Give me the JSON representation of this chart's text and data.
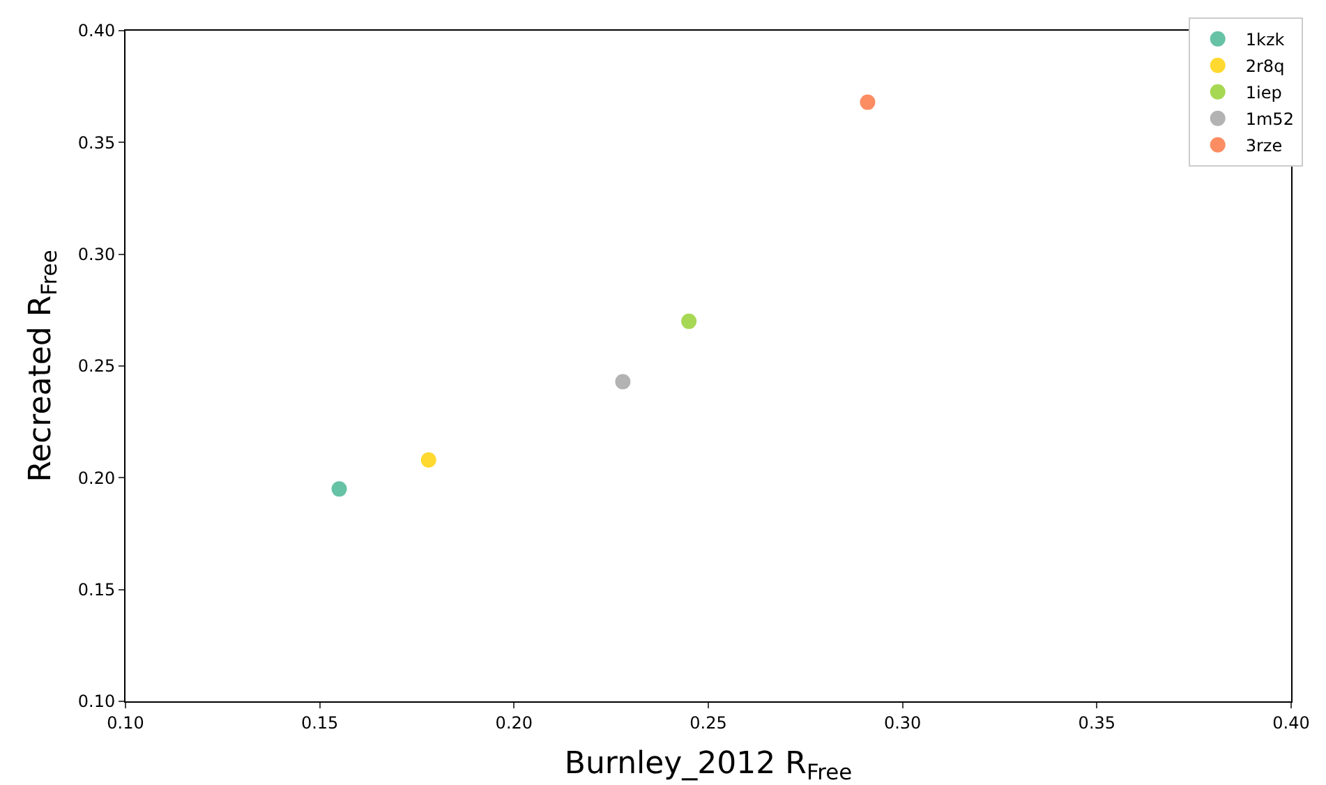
{
  "chart_data": {
    "type": "scatter",
    "xlabel": "Burnley_2012 R$_{Free}$",
    "ylabel": "Recreated R$_{Free}$",
    "xlim": [
      0.1,
      0.4
    ],
    "xticks": [
      {
        "value": 0.1,
        "label": "0.10"
      },
      {
        "value": 0.15,
        "label": "0.15"
      },
      {
        "value": 0.2,
        "label": "0.20"
      },
      {
        "value": 0.25,
        "label": "0.25"
      },
      {
        "value": 0.3,
        "label": "0.30"
      },
      {
        "value": 0.35,
        "label": "0.35"
      },
      {
        "value": 0.4,
        "label": "0.40"
      }
    ],
    "ylim": [
      0.1,
      0.4
    ],
    "yticks": [
      {
        "value": 0.1,
        "label": "0.10"
      },
      {
        "value": 0.15,
        "label": "0.15"
      },
      {
        "value": 0.2,
        "label": "0.20"
      },
      {
        "value": 0.25,
        "label": "0.25"
      },
      {
        "value": 0.3,
        "label": "0.30"
      },
      {
        "value": 0.35,
        "label": "0.35"
      },
      {
        "value": 0.4,
        "label": "0.40"
      }
    ],
    "grid": false,
    "legend": "top right",
    "marker": "circle",
    "series": [
      {
        "name": "1kzk",
        "color": "#66c2a5",
        "x": [
          0.155
        ],
        "values": [
          0.195
        ]
      },
      {
        "name": "2r8q",
        "color": "#ffd92f",
        "x": [
          0.178
        ],
        "values": [
          0.208
        ]
      },
      {
        "name": "1iep",
        "color": "#a6d854",
        "x": [
          0.245
        ],
        "values": [
          0.27
        ]
      },
      {
        "name": "1m52",
        "color": "#b3b3b3",
        "x": [
          0.228
        ],
        "values": [
          0.243
        ]
      },
      {
        "name": "3rze",
        "color": "#fc8d62",
        "x": [
          0.291
        ],
        "values": [
          0.368
        ]
      }
    ]
  }
}
